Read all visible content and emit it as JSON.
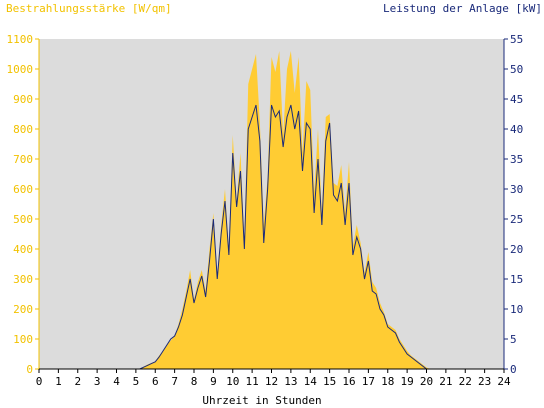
{
  "chart_data": {
    "type": "area",
    "title_left": "Bestrahlungsstärke [W/qm]",
    "title_right": "Leistung der Anlage [kW]",
    "xlabel": "Uhrzeit in Stunden",
    "xlim": [
      0,
      24
    ],
    "ylim_left": [
      0,
      1100
    ],
    "ylim_right": [
      0,
      55
    ],
    "x_ticks": [
      "0",
      "1",
      "2",
      "3",
      "4",
      "5",
      "6",
      "7",
      "8",
      "9",
      "10",
      "11",
      "12",
      "13",
      "14",
      "15",
      "16",
      "17",
      "18",
      "19",
      "20",
      "21",
      "22",
      "23",
      "24"
    ],
    "y_ticks_left": [
      "0",
      "100",
      "200",
      "300",
      "400",
      "500",
      "600",
      "700",
      "800",
      "900",
      "1000",
      "1100"
    ],
    "y_ticks_right": [
      "0",
      "5",
      "10",
      "15",
      "20",
      "25",
      "30",
      "35",
      "40",
      "45",
      "50",
      "55"
    ],
    "grid": false,
    "colors": {
      "plot_background": "#dcdcdc",
      "irradiance_fill": "#ffcc33",
      "power_line": "#1a2a7a",
      "left_axis": "#f2c200",
      "right_axis": "#1a2a7a"
    },
    "series": [
      {
        "axis": "left",
        "style": "area",
        "x": [
          0,
          5.2,
          5.4,
          5.6,
          5.8,
          6,
          6.2,
          6.4,
          6.6,
          6.8,
          7,
          7.2,
          7.4,
          7.6,
          7.8,
          8,
          8.2,
          8.4,
          8.6,
          8.8,
          9,
          9.2,
          9.4,
          9.6,
          9.8,
          10,
          10.2,
          10.4,
          10.6,
          10.8,
          11,
          11.2,
          11.4,
          11.6,
          11.8,
          12,
          12.2,
          12.4,
          12.6,
          12.8,
          13,
          13.2,
          13.4,
          13.6,
          13.8,
          14,
          14.2,
          14.4,
          14.6,
          14.8,
          15,
          15.2,
          15.4,
          15.6,
          15.8,
          16,
          16.2,
          16.4,
          16.6,
          16.8,
          17,
          17.2,
          17.4,
          17.6,
          17.8,
          18,
          18.2,
          18.4,
          18.6,
          18.8,
          19,
          19.2,
          19.4,
          19.6,
          19.8,
          20,
          20.2,
          24
        ],
        "values": [
          0,
          0,
          8,
          15,
          20,
          25,
          45,
          60,
          80,
          95,
          110,
          150,
          200,
          260,
          330,
          230,
          290,
          330,
          260,
          400,
          520,
          310,
          480,
          600,
          400,
          780,
          560,
          720,
          430,
          950,
          1000,
          1050,
          820,
          480,
          640,
          1040,
          990,
          1060,
          780,
          1000,
          1060,
          920,
          1040,
          720,
          960,
          930,
          590,
          800,
          520,
          840,
          850,
          620,
          610,
          680,
          520,
          690,
          410,
          480,
          420,
          320,
          390,
          290,
          270,
          220,
          190,
          150,
          140,
          130,
          100,
          80,
          60,
          45,
          35,
          25,
          15,
          5,
          0,
          0
        ]
      },
      {
        "axis": "right",
        "style": "line",
        "x": [
          0,
          5.2,
          5.4,
          5.6,
          5.8,
          6,
          6.2,
          6.4,
          6.6,
          6.8,
          7,
          7.2,
          7.4,
          7.6,
          7.8,
          8,
          8.2,
          8.4,
          8.6,
          8.8,
          9,
          9.2,
          9.4,
          9.6,
          9.8,
          10,
          10.2,
          10.4,
          10.6,
          10.8,
          11,
          11.2,
          11.4,
          11.6,
          11.8,
          12,
          12.2,
          12.4,
          12.6,
          12.8,
          13,
          13.2,
          13.4,
          13.6,
          13.8,
          14,
          14.2,
          14.4,
          14.6,
          14.8,
          15,
          15.2,
          15.4,
          15.6,
          15.8,
          16,
          16.2,
          16.4,
          16.6,
          16.8,
          17,
          17.2,
          17.4,
          17.6,
          17.8,
          18,
          18.2,
          18.4,
          18.6,
          18.8,
          19,
          19.2,
          19.4,
          19.6,
          19.8,
          20,
          20.2,
          24
        ],
        "values": [
          0,
          0,
          0.3,
          0.6,
          0.9,
          1.2,
          2,
          3,
          4,
          5,
          5.5,
          7,
          9,
          12,
          15,
          11,
          13.5,
          15.5,
          12,
          18,
          25,
          15,
          22.5,
          28,
          19,
          36,
          27,
          33,
          20,
          40,
          42,
          44,
          38,
          21,
          30,
          44,
          42,
          43,
          37,
          42,
          44,
          40,
          43,
          33,
          41,
          40,
          26,
          35,
          24,
          38,
          41,
          29,
          28,
          31,
          24,
          31,
          19,
          22,
          20,
          15,
          18,
          13,
          12.5,
          10,
          9,
          7,
          6.5,
          6,
          4.5,
          3.5,
          2.5,
          2,
          1.5,
          1,
          0.5,
          0,
          0,
          0
        ]
      }
    ]
  }
}
